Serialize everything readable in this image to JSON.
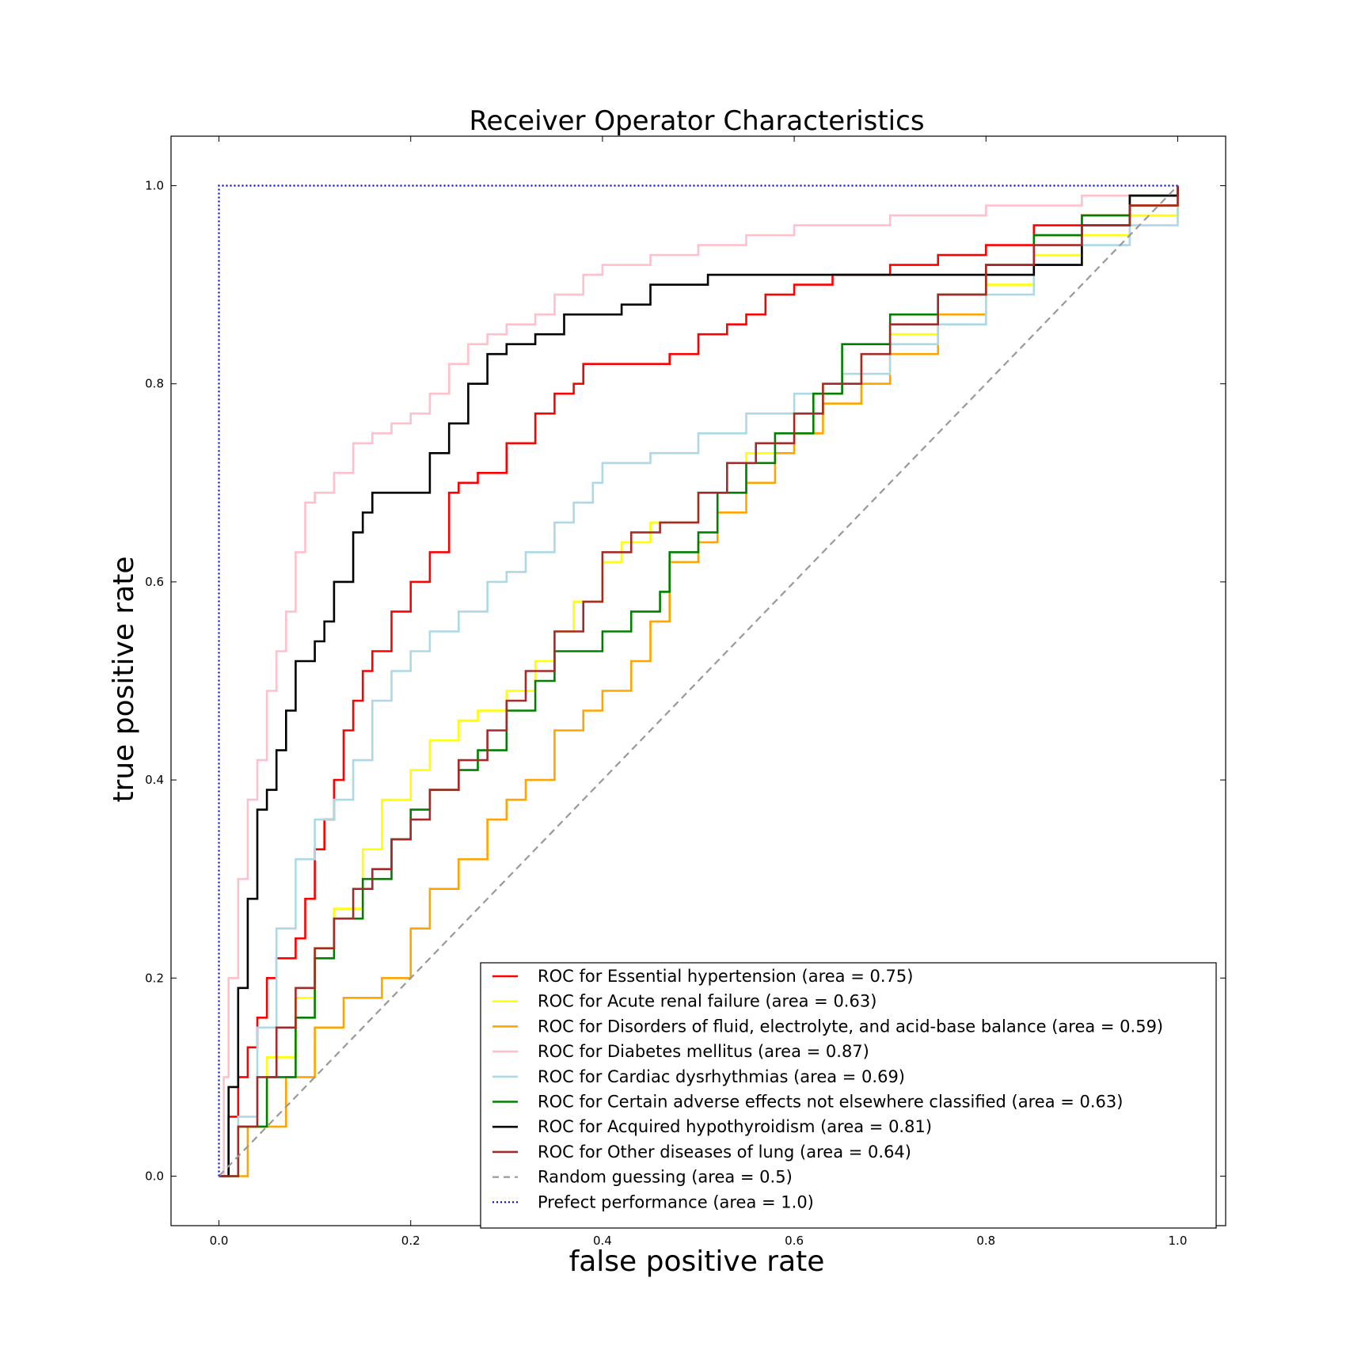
{
  "chart_data": {
    "type": "line",
    "title": "Receiver Operator Characteristics",
    "xlabel": "false positive rate",
    "ylabel": "true positive rate",
    "xlim": [
      -0.05,
      1.05
    ],
    "ylim": [
      -0.05,
      1.05
    ],
    "xticks": [
      "0.0",
      "0.2",
      "0.4",
      "0.6",
      "0.8",
      "1.0"
    ],
    "yticks": [
      "0.0",
      "0.2",
      "0.4",
      "0.6",
      "0.8",
      "1.0"
    ],
    "xtick_values": [
      0,
      0.2,
      0.4,
      0.6,
      0.8,
      1.0
    ],
    "ytick_values": [
      0,
      0.2,
      0.4,
      0.6,
      0.8,
      1.0
    ],
    "grid": false,
    "legend_position": "bottom-right",
    "series": [
      {
        "name": "ROC for Essential hypertension (area = 0.75)",
        "color": "#ff0000",
        "style": "solid",
        "x": [
          0,
          0.01,
          0.02,
          0.03,
          0.04,
          0.05,
          0.06,
          0.08,
          0.09,
          0.1,
          0.11,
          0.12,
          0.13,
          0.14,
          0.15,
          0.16,
          0.18,
          0.2,
          0.22,
          0.24,
          0.25,
          0.27,
          0.3,
          0.33,
          0.35,
          0.37,
          0.38,
          0.45,
          0.47,
          0.5,
          0.53,
          0.55,
          0.57,
          0.6,
          0.64,
          0.7,
          0.75,
          0.8,
          0.85,
          0.9,
          0.95,
          1.0
        ],
        "y": [
          0,
          0.06,
          0.1,
          0.13,
          0.16,
          0.2,
          0.22,
          0.24,
          0.28,
          0.33,
          0.36,
          0.4,
          0.45,
          0.48,
          0.51,
          0.53,
          0.57,
          0.6,
          0.63,
          0.69,
          0.7,
          0.71,
          0.74,
          0.77,
          0.79,
          0.8,
          0.82,
          0.82,
          0.83,
          0.85,
          0.86,
          0.87,
          0.89,
          0.9,
          0.91,
          0.92,
          0.93,
          0.94,
          0.96,
          0.97,
          0.98,
          1.0
        ]
      },
      {
        "name": "ROC for Acute renal failure (area = 0.63)",
        "color": "#ffff00",
        "style": "solid",
        "x": [
          0,
          0.02,
          0.05,
          0.08,
          0.1,
          0.12,
          0.15,
          0.17,
          0.2,
          0.22,
          0.25,
          0.27,
          0.3,
          0.33,
          0.35,
          0.37,
          0.4,
          0.42,
          0.45,
          0.5,
          0.55,
          0.6,
          0.63,
          0.67,
          0.7,
          0.75,
          0.8,
          0.85,
          0.9,
          0.95,
          1.0
        ],
        "y": [
          0,
          0.05,
          0.12,
          0.18,
          0.23,
          0.27,
          0.33,
          0.38,
          0.41,
          0.44,
          0.46,
          0.47,
          0.49,
          0.52,
          0.55,
          0.58,
          0.62,
          0.64,
          0.66,
          0.69,
          0.73,
          0.77,
          0.8,
          0.83,
          0.85,
          0.87,
          0.9,
          0.93,
          0.95,
          0.97,
          1.0
        ]
      },
      {
        "name": "ROC for Disorders of fluid, electrolyte, and acid-base balance (area = 0.59)",
        "color": "#ffa500",
        "style": "solid",
        "x": [
          0,
          0.03,
          0.07,
          0.1,
          0.13,
          0.17,
          0.2,
          0.22,
          0.25,
          0.28,
          0.3,
          0.32,
          0.35,
          0.38,
          0.4,
          0.43,
          0.45,
          0.47,
          0.5,
          0.52,
          0.55,
          0.58,
          0.6,
          0.63,
          0.67,
          0.7,
          0.75,
          0.8,
          0.85,
          0.9,
          0.95,
          1.0
        ],
        "y": [
          0,
          0.05,
          0.1,
          0.15,
          0.18,
          0.2,
          0.25,
          0.29,
          0.32,
          0.36,
          0.38,
          0.4,
          0.45,
          0.47,
          0.49,
          0.52,
          0.56,
          0.62,
          0.64,
          0.67,
          0.7,
          0.73,
          0.75,
          0.78,
          0.8,
          0.83,
          0.87,
          0.92,
          0.95,
          0.97,
          0.98,
          1.0
        ]
      },
      {
        "name": "ROC for Diabetes mellitus (area = 0.87)",
        "color": "#ffc0cb",
        "style": "solid",
        "x": [
          0,
          0.005,
          0.01,
          0.02,
          0.03,
          0.04,
          0.05,
          0.06,
          0.07,
          0.08,
          0.09,
          0.1,
          0.12,
          0.14,
          0.16,
          0.18,
          0.2,
          0.22,
          0.24,
          0.26,
          0.28,
          0.3,
          0.33,
          0.35,
          0.38,
          0.4,
          0.45,
          0.5,
          0.55,
          0.6,
          0.7,
          0.8,
          0.9,
          1.0
        ],
        "y": [
          0,
          0.1,
          0.2,
          0.3,
          0.38,
          0.42,
          0.49,
          0.53,
          0.57,
          0.63,
          0.68,
          0.69,
          0.71,
          0.74,
          0.75,
          0.76,
          0.77,
          0.79,
          0.82,
          0.84,
          0.85,
          0.86,
          0.87,
          0.89,
          0.91,
          0.92,
          0.93,
          0.94,
          0.95,
          0.96,
          0.97,
          0.98,
          0.99,
          1.0
        ]
      },
      {
        "name": "ROC for Cardiac dysrhythmias (area = 0.69)",
        "color": "#add8e6",
        "style": "solid",
        "x": [
          0,
          0.02,
          0.04,
          0.06,
          0.08,
          0.1,
          0.12,
          0.14,
          0.16,
          0.18,
          0.2,
          0.22,
          0.25,
          0.28,
          0.3,
          0.32,
          0.35,
          0.37,
          0.39,
          0.4,
          0.45,
          0.5,
          0.55,
          0.6,
          0.65,
          0.7,
          0.75,
          0.8,
          0.85,
          0.9,
          0.95,
          1.0
        ],
        "y": [
          0,
          0.06,
          0.15,
          0.25,
          0.32,
          0.36,
          0.38,
          0.42,
          0.48,
          0.51,
          0.53,
          0.55,
          0.57,
          0.6,
          0.61,
          0.63,
          0.66,
          0.68,
          0.7,
          0.72,
          0.73,
          0.75,
          0.77,
          0.79,
          0.81,
          0.84,
          0.86,
          0.89,
          0.92,
          0.94,
          0.96,
          1.0
        ]
      },
      {
        "name": "ROC for Certain adverse effects not elsewhere classified (area = 0.63)",
        "color": "#008000",
        "style": "solid",
        "x": [
          0,
          0.02,
          0.05,
          0.08,
          0.1,
          0.12,
          0.15,
          0.18,
          0.2,
          0.22,
          0.25,
          0.27,
          0.3,
          0.33,
          0.35,
          0.4,
          0.43,
          0.46,
          0.47,
          0.5,
          0.52,
          0.55,
          0.58,
          0.62,
          0.65,
          0.7,
          0.75,
          0.8,
          0.85,
          0.9,
          0.95,
          1.0
        ],
        "y": [
          0,
          0.05,
          0.1,
          0.16,
          0.22,
          0.26,
          0.3,
          0.34,
          0.37,
          0.39,
          0.41,
          0.43,
          0.47,
          0.5,
          0.53,
          0.55,
          0.57,
          0.59,
          0.63,
          0.65,
          0.69,
          0.72,
          0.75,
          0.79,
          0.84,
          0.87,
          0.89,
          0.92,
          0.95,
          0.97,
          0.99,
          1.0
        ]
      },
      {
        "name": "ROC for Acquired hypothyroidism (area = 0.81)",
        "color": "#000000",
        "style": "solid",
        "x": [
          0,
          0.01,
          0.02,
          0.03,
          0.04,
          0.05,
          0.06,
          0.07,
          0.08,
          0.1,
          0.11,
          0.12,
          0.14,
          0.15,
          0.16,
          0.2,
          0.22,
          0.24,
          0.26,
          0.28,
          0.3,
          0.33,
          0.36,
          0.42,
          0.45,
          0.51,
          0.6,
          0.7,
          0.75,
          0.8,
          0.85,
          0.9,
          0.95,
          1.0
        ],
        "y": [
          0,
          0.09,
          0.19,
          0.28,
          0.37,
          0.39,
          0.43,
          0.47,
          0.52,
          0.54,
          0.56,
          0.6,
          0.65,
          0.67,
          0.69,
          0.69,
          0.73,
          0.76,
          0.8,
          0.83,
          0.84,
          0.85,
          0.87,
          0.88,
          0.9,
          0.91,
          0.91,
          0.91,
          0.91,
          0.91,
          0.92,
          0.96,
          0.99,
          1.0
        ]
      },
      {
        "name": "ROC for Other diseases of lung (area = 0.64)",
        "color": "#a52a2a",
        "style": "solid",
        "x": [
          0,
          0.02,
          0.04,
          0.06,
          0.08,
          0.1,
          0.12,
          0.14,
          0.16,
          0.18,
          0.2,
          0.22,
          0.25,
          0.28,
          0.3,
          0.32,
          0.35,
          0.38,
          0.4,
          0.43,
          0.46,
          0.5,
          0.53,
          0.56,
          0.6,
          0.63,
          0.67,
          0.7,
          0.75,
          0.8,
          0.85,
          0.9,
          0.95,
          1.0
        ],
        "y": [
          0,
          0.05,
          0.1,
          0.15,
          0.19,
          0.23,
          0.26,
          0.29,
          0.31,
          0.34,
          0.36,
          0.39,
          0.42,
          0.45,
          0.48,
          0.51,
          0.55,
          0.58,
          0.63,
          0.65,
          0.66,
          0.69,
          0.72,
          0.74,
          0.77,
          0.8,
          0.83,
          0.86,
          0.89,
          0.92,
          0.94,
          0.96,
          0.98,
          1.0
        ]
      },
      {
        "name": "Random guessing (area = 0.5)",
        "color": "#999999",
        "style": "dashed",
        "x": [
          0,
          1
        ],
        "y": [
          0,
          1
        ]
      },
      {
        "name": "Prefect performance (area = 1.0)",
        "color": "#0000ff",
        "style": "dotted",
        "x": [
          0,
          0,
          1
        ],
        "y": [
          0,
          1,
          1
        ]
      }
    ]
  }
}
